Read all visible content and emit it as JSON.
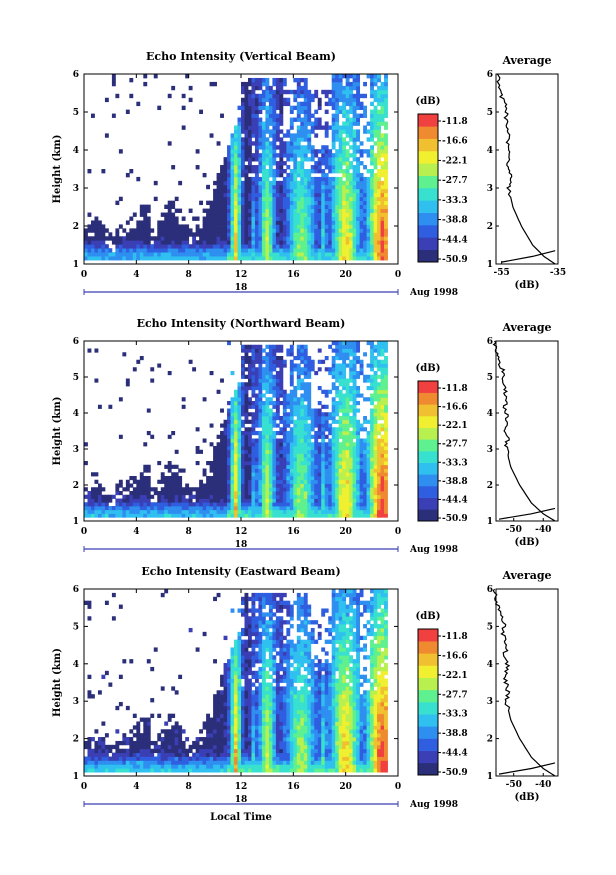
{
  "chart_data": [
    {
      "type": "heatmap",
      "title": "Echo Intensity (Vertical Beam)",
      "ylabel": "Height (km)",
      "xlabel": "",
      "x_ticks": [
        "0",
        "4",
        "8",
        "12",
        "16",
        "20",
        "0"
      ],
      "y_ticks": [
        "1",
        "2",
        "3",
        "4",
        "5",
        "6"
      ],
      "xlim": [
        0,
        24
      ],
      "ylim": [
        1,
        6
      ],
      "date_axis": {
        "day": "18",
        "month_year": "Aug 1998"
      },
      "colorbar": {
        "unit": "(dB)",
        "ticks": [
          "-11.8",
          "-16.6",
          "-22.1",
          "-27.7",
          "-33.3",
          "-38.8",
          "-44.4",
          "-50.9"
        ]
      },
      "profile": {
        "title": "Average",
        "xlabel": "(dB)",
        "x_ticks": [
          "-55",
          "-35"
        ],
        "x_tick_values": [
          -55,
          -35
        ],
        "xlim": [
          -57,
          -35
        ],
        "y_ticks": [
          "1",
          "2",
          "3",
          "4",
          "5",
          "6"
        ],
        "height_km": [
          1.0,
          1.2,
          1.5,
          2.0,
          2.5,
          3.0,
          3.3,
          3.6,
          3.9,
          4.2,
          4.5,
          4.8,
          5.1,
          5.4,
          5.7,
          6.0
        ],
        "intensity_db": [
          -36,
          -40,
          -44,
          -48,
          -51,
          -52.5,
          -52,
          -53,
          -52,
          -53,
          -52.5,
          -53.5,
          -53,
          -55,
          -56,
          -56.5
        ],
        "near_ground": {
          "height_km": [
            1.05,
            1.2,
            1.35
          ],
          "intensity_db": [
            -55,
            -44,
            -36
          ]
        }
      }
    },
    {
      "type": "heatmap",
      "title": "Echo Intensity (Northward Beam)",
      "ylabel": "Height (km)",
      "xlabel": "",
      "x_ticks": [
        "0",
        "4",
        "8",
        "12",
        "16",
        "20",
        "0"
      ],
      "y_ticks": [
        "1",
        "2",
        "3",
        "4",
        "5",
        "6"
      ],
      "xlim": [
        0,
        24
      ],
      "ylim": [
        1,
        6
      ],
      "date_axis": {
        "day": "18",
        "month_year": "Aug 1998"
      },
      "colorbar": {
        "unit": "(dB)",
        "ticks": [
          "-11.8",
          "-16.6",
          "-22.1",
          "-27.7",
          "-33.3",
          "-38.8",
          "-44.4",
          "-50.9"
        ]
      },
      "profile": {
        "title": "Average",
        "xlabel": "(dB)",
        "x_ticks": [
          "-50",
          "-40"
        ],
        "x_tick_values": [
          -50,
          -40
        ],
        "xlim": [
          -56,
          -35
        ],
        "y_ticks": [
          "1",
          "2",
          "3",
          "4",
          "5",
          "6"
        ],
        "height_km": [
          1.0,
          1.2,
          1.5,
          2.0,
          2.5,
          3.0,
          3.3,
          3.6,
          3.9,
          4.2,
          4.5,
          4.8,
          5.1,
          5.4,
          5.7,
          6.0
        ],
        "intensity_db": [
          -36,
          -40,
          -44,
          -48,
          -51,
          -52.5,
          -52,
          -53,
          -52,
          -53,
          -52.5,
          -53.5,
          -53,
          -55,
          -56,
          -56.5
        ],
        "near_ground": {
          "height_km": [
            1.05,
            1.2,
            1.35
          ],
          "intensity_db": [
            -55,
            -44,
            -36
          ]
        }
      }
    },
    {
      "type": "heatmap",
      "title": "Echo Intensity (Eastward Beam)",
      "ylabel": "Height (km)",
      "xlabel": "Local Time",
      "x_ticks": [
        "0",
        "4",
        "8",
        "12",
        "16",
        "20",
        "0"
      ],
      "y_ticks": [
        "1",
        "2",
        "3",
        "4",
        "5",
        "6"
      ],
      "xlim": [
        0,
        24
      ],
      "ylim": [
        1,
        6
      ],
      "date_axis": {
        "day": "18",
        "month_year": "Aug 1998"
      },
      "colorbar": {
        "unit": "(dB)",
        "ticks": [
          "-11.8",
          "-16.6",
          "-22.1",
          "-27.7",
          "-33.3",
          "-38.8",
          "-44.4",
          "-50.9"
        ]
      },
      "profile": {
        "title": "Average",
        "xlabel": "(dB)",
        "x_ticks": [
          "-50",
          "-40"
        ],
        "x_tick_values": [
          -50,
          -40
        ],
        "xlim": [
          -56,
          -35
        ],
        "y_ticks": [
          "1",
          "2",
          "3",
          "4",
          "5",
          "6"
        ],
        "height_km": [
          1.0,
          1.2,
          1.5,
          2.0,
          2.5,
          3.0,
          3.3,
          3.6,
          3.9,
          4.2,
          4.5,
          4.8,
          5.1,
          5.4,
          5.7,
          6.0
        ],
        "intensity_db": [
          -36,
          -40,
          -44,
          -48,
          -51,
          -52.5,
          -52,
          -53,
          -52,
          -53,
          -52.5,
          -53.5,
          -53,
          -55,
          -56,
          -56.5
        ],
        "near_ground": {
          "height_km": [
            1.05,
            1.2,
            1.35
          ],
          "intensity_db": [
            -55,
            -44,
            -36
          ]
        }
      }
    }
  ],
  "colors": {
    "colormap": [
      "#2b2f7a",
      "#3a3fb5",
      "#2f5fe0",
      "#2f8ff0",
      "#2fc0f0",
      "#38e0d0",
      "#5ff08f",
      "#b8f050",
      "#f0f030",
      "#f0c030",
      "#f08a30",
      "#f04040"
    ],
    "axis": "#000000",
    "date_bar": "#3a3fb5"
  }
}
